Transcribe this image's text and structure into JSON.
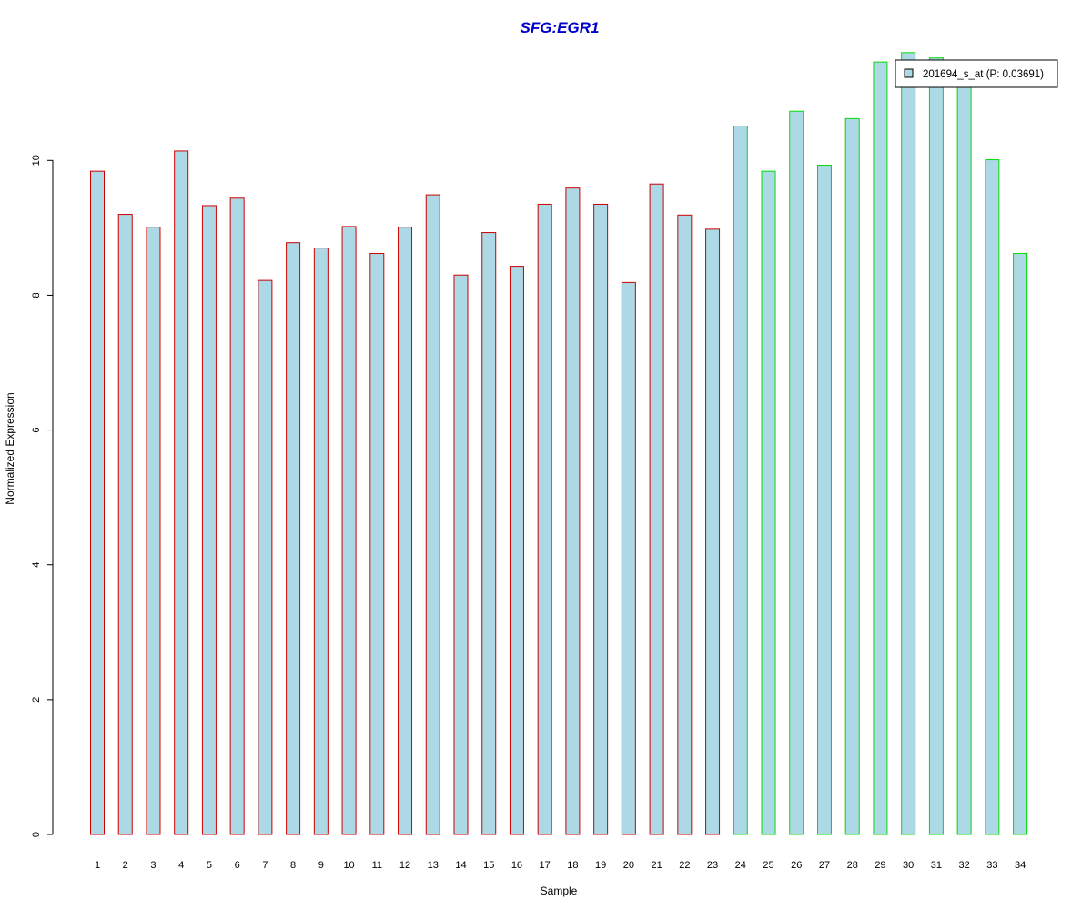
{
  "chart_data": {
    "type": "bar",
    "title": "SFG:EGR1",
    "xlabel": "Sample",
    "ylabel": "Normalized Expression",
    "ylim": [
      0,
      12
    ],
    "yticks": [
      0,
      2,
      4,
      6,
      8,
      10
    ],
    "grid": false,
    "legend_position": "top-right",
    "bar_fill_color": "#add8e6",
    "categories": [
      "1",
      "2",
      "3",
      "4",
      "5",
      "6",
      "7",
      "8",
      "9",
      "10",
      "11",
      "12",
      "13",
      "14",
      "15",
      "16",
      "17",
      "18",
      "19",
      "20",
      "21",
      "22",
      "23",
      "24",
      "25",
      "26",
      "27",
      "28",
      "29",
      "30",
      "31",
      "32",
      "33",
      "34"
    ],
    "series": [
      {
        "name": "201694_s_at (P: 0.03691)",
        "values": [
          9.84,
          9.2,
          9.01,
          10.14,
          9.33,
          9.44,
          8.22,
          8.78,
          8.7,
          9.02,
          8.62,
          9.01,
          9.49,
          8.3,
          8.93,
          8.43,
          9.35,
          9.59,
          9.35,
          8.19,
          9.65,
          9.19,
          8.98,
          10.51,
          9.84,
          10.73,
          9.93,
          10.62,
          11.46,
          11.6,
          11.52,
          11.3,
          10.01,
          8.62
        ]
      }
    ],
    "group_outline_colors": [
      "#cc0000",
      "#cc0000",
      "#cc0000",
      "#cc0000",
      "#cc0000",
      "#cc0000",
      "#cc0000",
      "#cc0000",
      "#cc0000",
      "#cc0000",
      "#cc0000",
      "#cc0000",
      "#cc0000",
      "#cc0000",
      "#cc0000",
      "#cc0000",
      "#cc0000",
      "#cc0000",
      "#cc0000",
      "#cc0000",
      "#cc0000",
      "#cc0000",
      "#cc0000",
      "#00dd00",
      "#00dd00",
      "#00dd00",
      "#00dd00",
      "#00dd00",
      "#00dd00",
      "#00dd00",
      "#00dd00",
      "#00dd00",
      "#00dd00",
      "#00dd00"
    ]
  }
}
